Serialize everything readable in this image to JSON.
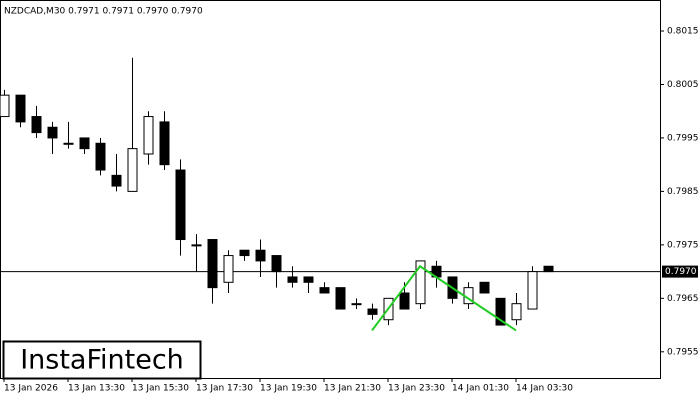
{
  "chart_data": {
    "type": "candlestick",
    "title": "NZDCAD,M30  0.7971 0.7971 0.7970 0.7970",
    "watermark": "InstaFintech",
    "categories": [
      "13 Jan 2026",
      null,
      null,
      null,
      "13 Jan 13:30",
      null,
      null,
      null,
      "13 Jan 15:30",
      null,
      null,
      null,
      "13 Jan 17:30",
      null,
      null,
      null,
      "13 Jan 19:30",
      null,
      null,
      null,
      "13 Jan 21:30",
      null,
      null,
      null,
      "13 Jan 23:30",
      null,
      null,
      null,
      "14 Jan 01:30",
      null,
      null,
      null,
      "14 Jan 03:30",
      null,
      null
    ],
    "open": [
      0.7999,
      0.8003,
      0.7999,
      0.7997,
      0.7994,
      0.7995,
      0.7994,
      0.7988,
      0.7985,
      0.7992,
      0.7998,
      0.7989,
      0.7975,
      0.7976,
      0.7968,
      0.7974,
      0.7974,
      0.7973,
      0.7969,
      0.7969,
      0.7967,
      0.7967,
      0.7964,
      0.7963,
      0.7961,
      0.7966,
      0.7964,
      0.7971,
      0.7969,
      0.7964,
      0.7968,
      0.7965,
      0.7961,
      0.7963,
      0.7971
    ],
    "high": [
      0.8004,
      0.8003,
      0.8001,
      0.7998,
      0.7998,
      0.7995,
      0.7995,
      0.7992,
      0.801,
      0.8,
      0.8,
      0.7991,
      0.7977,
      0.7976,
      0.7974,
      0.7974,
      0.7976,
      0.7973,
      0.7971,
      0.7969,
      0.7968,
      0.7967,
      0.7965,
      0.7964,
      0.7965,
      0.7968,
      0.7972,
      0.7972,
      0.7969,
      0.7968,
      0.7968,
      0.7965,
      0.7966,
      0.7971,
      0.7971
    ],
    "low": [
      0.7999,
      0.7997,
      0.7995,
      0.7992,
      0.7993,
      0.7992,
      0.7988,
      0.7985,
      0.7985,
      0.799,
      0.7989,
      0.7973,
      0.797,
      0.7964,
      0.7966,
      0.7972,
      0.7969,
      0.7967,
      0.7967,
      0.7966,
      0.7966,
      0.7963,
      0.7963,
      0.7961,
      0.796,
      0.7963,
      0.7963,
      0.7967,
      0.7964,
      0.7963,
      0.7966,
      0.796,
      0.796,
      0.7963,
      0.797
    ],
    "close": [
      0.8003,
      0.7998,
      0.7996,
      0.7995,
      0.7994,
      0.7993,
      0.7989,
      0.7986,
      0.7993,
      0.7999,
      0.799,
      0.7976,
      0.7975,
      0.7967,
      0.7973,
      0.7973,
      0.7972,
      0.797,
      0.7968,
      0.7968,
      0.7966,
      0.7963,
      0.7964,
      0.7962,
      0.7965,
      0.7963,
      0.7972,
      0.7969,
      0.7965,
      0.7967,
      0.7966,
      0.796,
      0.7964,
      0.797,
      0.797
    ],
    "up_color": "#ffffff",
    "down_color": "#000000",
    "pattern": {
      "color": "#22cc22",
      "x": [
        23,
        26,
        32
      ],
      "y": [
        0.7959,
        0.7971,
        0.7959
      ]
    },
    "price_line": {
      "value": 0.797,
      "label": "0.7970"
    },
    "ylim": [
      0.79501,
      0.80208
    ],
    "yticks": [
      0.7955,
      0.7965,
      0.7975,
      0.7985,
      0.7995,
      0.8005,
      0.8015
    ]
  }
}
